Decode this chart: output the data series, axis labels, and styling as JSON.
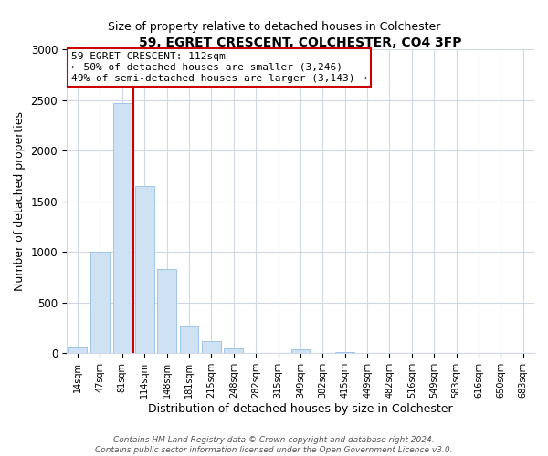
{
  "title": "59, EGRET CRESCENT, COLCHESTER, CO4 3FP",
  "subtitle": "Size of property relative to detached houses in Colchester",
  "xlabel": "Distribution of detached houses by size in Colchester",
  "ylabel": "Number of detached properties",
  "bin_labels": [
    "14sqm",
    "47sqm",
    "81sqm",
    "114sqm",
    "148sqm",
    "181sqm",
    "215sqm",
    "248sqm",
    "282sqm",
    "315sqm",
    "349sqm",
    "382sqm",
    "415sqm",
    "449sqm",
    "482sqm",
    "516sqm",
    "549sqm",
    "583sqm",
    "616sqm",
    "650sqm",
    "683sqm"
  ],
  "bar_values": [
    55,
    1000,
    2470,
    1650,
    830,
    265,
    120,
    50,
    0,
    0,
    40,
    0,
    12,
    0,
    0,
    0,
    0,
    0,
    0,
    0,
    0
  ],
  "bar_color": "#cfe2f3",
  "bar_edgecolor": "#9ec5e8",
  "vline_color": "#cc0000",
  "vline_pos": 2.5,
  "annotation_title": "59 EGRET CRESCENT: 112sqm",
  "annotation_line1": "← 50% of detached houses are smaller (3,246)",
  "annotation_line2": "49% of semi-detached houses are larger (3,143) →",
  "annotation_box_edgecolor": "#cc0000",
  "ylim": [
    0,
    3000
  ],
  "yticks": [
    0,
    500,
    1000,
    1500,
    2000,
    2500,
    3000
  ],
  "footnote1": "Contains HM Land Registry data © Crown copyright and database right 2024.",
  "footnote2": "Contains public sector information licensed under the Open Government Licence v3.0.",
  "bg_color": "#ffffff",
  "plot_bg_color": "#ffffff",
  "grid_color": "#d0d8e8"
}
